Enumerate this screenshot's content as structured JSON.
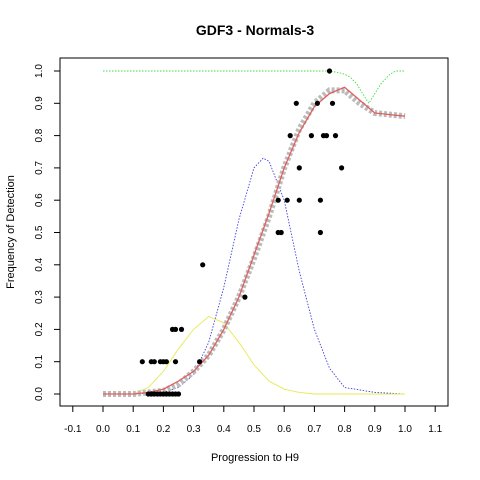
{
  "chart_data": {
    "type": "scatter",
    "title": "GDF3 - Normals-3",
    "xlabel": "Progression to H9",
    "ylabel": "Frequency of Detection",
    "xlim": [
      -0.1,
      1.1
    ],
    "ylim": [
      0.0,
      1.0
    ],
    "x_ticks": [
      "-0.1",
      "0.0",
      "0.1",
      "0.2",
      "0.3",
      "0.4",
      "0.5",
      "0.6",
      "0.7",
      "0.8",
      "0.9",
      "1.0",
      "1.1"
    ],
    "y_ticks": [
      "0.0",
      "0.1",
      "0.2",
      "0.3",
      "0.4",
      "0.5",
      "0.6",
      "0.7",
      "0.8",
      "0.9",
      "1.0"
    ],
    "grid": false,
    "legend": "none",
    "colors": {
      "points": "#000000",
      "smoothed": "#bbbbbb",
      "fit": "#e06060",
      "blue_curve": "#4040dd",
      "yellow_curve": "#e8e850",
      "green_curve": "#40dd40"
    },
    "series": [
      {
        "type": "scatter",
        "points": [
          [
            0.13,
            0.1
          ],
          [
            0.16,
            0.1
          ],
          [
            0.17,
            0.1
          ],
          [
            0.19,
            0.1
          ],
          [
            0.2,
            0.1
          ],
          [
            0.21,
            0.1
          ],
          [
            0.24,
            0.1
          ],
          [
            0.15,
            0.0
          ],
          [
            0.16,
            0.0
          ],
          [
            0.17,
            0.0
          ],
          [
            0.18,
            0.0
          ],
          [
            0.19,
            0.0
          ],
          [
            0.2,
            0.0
          ],
          [
            0.21,
            0.0
          ],
          [
            0.22,
            0.0
          ],
          [
            0.23,
            0.0
          ],
          [
            0.24,
            0.0
          ],
          [
            0.25,
            0.0
          ],
          [
            0.23,
            0.2
          ],
          [
            0.24,
            0.2
          ],
          [
            0.26,
            0.2
          ],
          [
            0.32,
            0.1
          ],
          [
            0.33,
            0.4
          ],
          [
            0.47,
            0.3
          ],
          [
            0.58,
            0.5
          ],
          [
            0.59,
            0.5
          ],
          [
            0.58,
            0.6
          ],
          [
            0.61,
            0.6
          ],
          [
            0.62,
            0.8
          ],
          [
            0.64,
            0.9
          ],
          [
            0.65,
            0.6
          ],
          [
            0.65,
            0.7
          ],
          [
            0.69,
            0.8
          ],
          [
            0.71,
            0.9
          ],
          [
            0.72,
            0.5
          ],
          [
            0.72,
            0.6
          ],
          [
            0.73,
            0.8
          ],
          [
            0.74,
            0.8
          ],
          [
            0.75,
            1.0
          ],
          [
            0.76,
            0.9
          ],
          [
            0.77,
            0.8
          ],
          [
            0.79,
            0.7
          ]
        ]
      },
      {
        "type": "line",
        "x": [
          0.0,
          0.1,
          0.15,
          0.2,
          0.25,
          0.3,
          0.35,
          0.4,
          0.45,
          0.5,
          0.55,
          0.6,
          0.65,
          0.7,
          0.75,
          0.8,
          0.85,
          0.9,
          0.95,
          1.0
        ],
        "y": [
          0.0,
          0.0,
          0.005,
          0.01,
          0.03,
          0.07,
          0.12,
          0.2,
          0.3,
          0.42,
          0.55,
          0.7,
          0.82,
          0.9,
          0.94,
          0.94,
          0.9,
          0.87,
          0.865,
          0.86
        ]
      },
      {
        "type": "line",
        "x": [
          0.0,
          0.1,
          0.15,
          0.2,
          0.25,
          0.3,
          0.35,
          0.4,
          0.45,
          0.5,
          0.55,
          0.6,
          0.65,
          0.7,
          0.75,
          0.8,
          0.85,
          0.9,
          0.95,
          1.0
        ],
        "y": [
          0.0,
          0.0,
          0.005,
          0.015,
          0.04,
          0.07,
          0.12,
          0.2,
          0.3,
          0.43,
          0.56,
          0.7,
          0.81,
          0.89,
          0.93,
          0.95,
          0.91,
          0.87,
          0.865,
          0.86
        ]
      },
      {
        "type": "line",
        "x": [
          0.0,
          0.1,
          0.2,
          0.25,
          0.3,
          0.35,
          0.4,
          0.45,
          0.5,
          0.53,
          0.55,
          0.6,
          0.65,
          0.7,
          0.75,
          0.8,
          0.9,
          1.0
        ],
        "y": [
          0.0,
          0.0,
          0.005,
          0.02,
          0.06,
          0.16,
          0.33,
          0.54,
          0.7,
          0.73,
          0.72,
          0.6,
          0.38,
          0.2,
          0.08,
          0.02,
          0.005,
          0.0
        ]
      },
      {
        "type": "line",
        "x": [
          0.0,
          0.1,
          0.15,
          0.2,
          0.25,
          0.3,
          0.35,
          0.4,
          0.45,
          0.5,
          0.55,
          0.6,
          0.65,
          0.7,
          0.8,
          1.0
        ],
        "y": [
          0.0,
          0.0,
          0.02,
          0.07,
          0.14,
          0.2,
          0.24,
          0.22,
          0.16,
          0.09,
          0.04,
          0.015,
          0.005,
          0.0,
          0.0,
          0.0
        ]
      },
      {
        "type": "line",
        "x": [
          0.0,
          0.5,
          0.7,
          0.75,
          0.78,
          0.8,
          0.82,
          0.84,
          0.86,
          0.88,
          0.9,
          0.92,
          0.95,
          0.97,
          1.0
        ],
        "y": [
          1.0,
          1.0,
          1.0,
          1.0,
          0.995,
          0.99,
          0.98,
          0.96,
          0.93,
          0.9,
          0.93,
          0.96,
          0.99,
          1.0,
          1.0
        ]
      }
    ]
  }
}
